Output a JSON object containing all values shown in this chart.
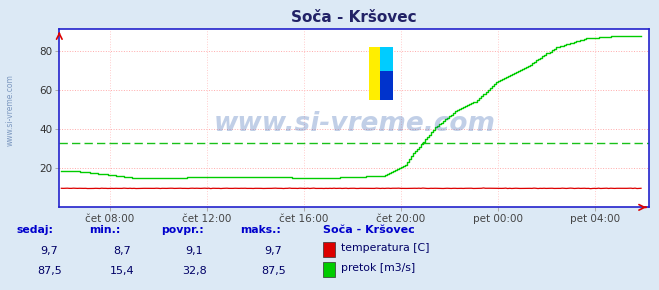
{
  "title": "Soča - Kršovec",
  "bg_color": "#dce9f5",
  "plot_bg_color": "#ffffff",
  "grid_color_h": "#ffaaaa",
  "grid_color_v": "#ffcccc",
  "avg_line_color": "#00bb00",
  "avg_value": 32.8,
  "x_min": 0,
  "x_max": 288,
  "y_min": 0,
  "y_max": 90,
  "yticks": [
    20,
    40,
    60,
    80
  ],
  "xtick_positions": [
    24,
    72,
    120,
    168,
    216,
    264
  ],
  "xtick_labels": [
    "čet 08:00",
    "čet 12:00",
    "čet 16:00",
    "čet 20:00",
    "pet 00:00",
    "pet 04:00"
  ],
  "temp_color": "#dd0000",
  "flow_color": "#00cc00",
  "axis_color": "#2222cc",
  "watermark_text": "www.si-vreme.com",
  "watermark_color": "#2255aa",
  "watermark_alpha": 0.28,
  "footer_label_color": "#0000cc",
  "footer_value_color": "#000066",
  "footer_headers": [
    "sedaj:",
    "min.:",
    "povpr.:",
    "maks.:"
  ],
  "footer_temp_values": [
    "9,7",
    "8,7",
    "9,1",
    "9,7"
  ],
  "footer_flow_values": [
    "87,5",
    "15,4",
    "32,8",
    "87,5"
  ],
  "station_name": "Soča - Kršovec",
  "legend_temp": "temperatura [C]",
  "legend_flow": "pretok [m3/s]",
  "side_text": "www.si-vreme.com"
}
